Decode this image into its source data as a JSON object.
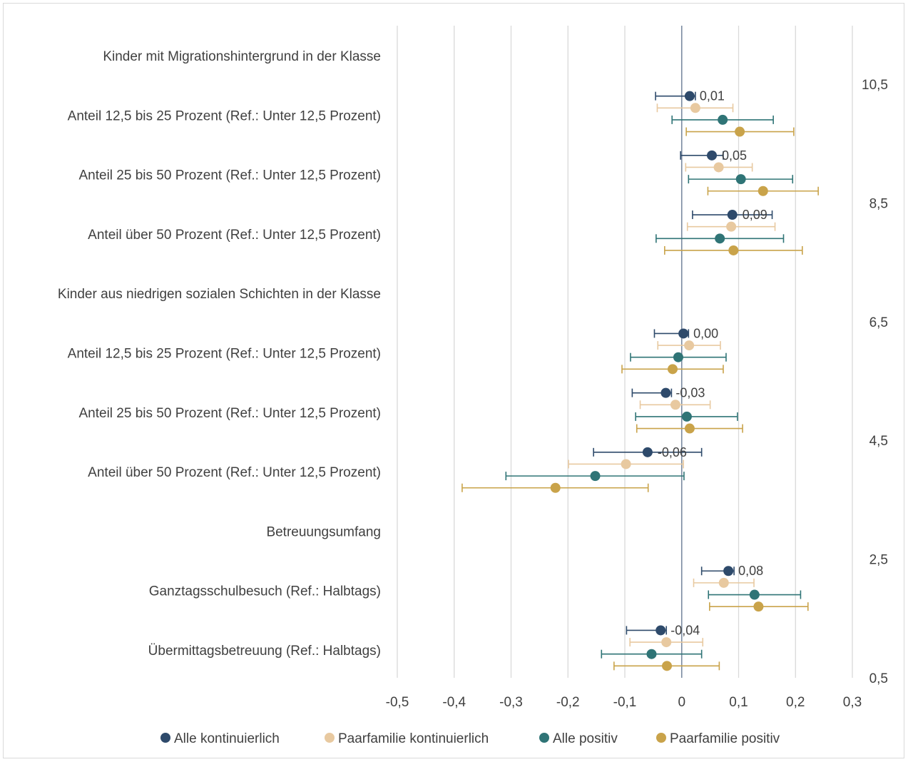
{
  "chart_data": {
    "type": "scatter",
    "title": "",
    "xlabel": "",
    "ylabel": "",
    "xlim": [
      -0.5,
      0.3
    ],
    "x_ticks": [
      "-0,5",
      "-0,4",
      "-0,3",
      "-0,2",
      "-0,1",
      "0",
      "0,1",
      "0,2",
      "0,3"
    ],
    "y2lim": [
      0.5,
      10.5
    ],
    "y2_ticks": [
      "0,5",
      "2,5",
      "4,5",
      "6,5",
      "8,5",
      "10,5"
    ],
    "grid": "vertical",
    "legend_position": "bottom",
    "categories": [
      "Kinder mit Migrationshintergrund in der Klasse",
      "Anteil 12,5 bis 25 Prozent (Ref.: Unter 12,5 Prozent)",
      "Anteil 25 bis 50 Prozent (Ref.: Unter 12,5 Prozent)",
      "Anteil über 50 Prozent (Ref.: Unter 12,5 Prozent)",
      "Kinder aus niedrigen sozialen Schichten in der Klasse",
      "Anteil 12,5 bis 25 Prozent (Ref.: Unter 12,5 Prozent)",
      "Anteil 25 bis 50 Prozent (Ref.: Unter 12,5 Prozent)",
      "Anteil über 50 Prozent (Ref.: Unter 12,5 Prozent)",
      "Betreuungsumfang",
      "Ganztagsschulbesuch (Ref.: Halbtags)",
      "Übermittagsbetreuung (Ref.: Halbtags)"
    ],
    "data_labels": [
      "0,01",
      "0,05",
      "0,09",
      "0,00",
      "-0,03",
      "-0,06",
      "0,08",
      "-0,04"
    ],
    "series": [
      {
        "name": "Alle kontinuierlich",
        "color": "#2e4a6b",
        "points": [
          {
            "y": 10.3,
            "x": 0.014,
            "lo": -0.046,
            "hi": 0.024
          },
          {
            "y": 9.3,
            "x": 0.053,
            "lo": -0.002,
            "hi": 0.073
          },
          {
            "y": 8.3,
            "x": 0.089,
            "lo": 0.019,
            "hi": 0.159
          },
          {
            "y": 6.3,
            "x": 0.003,
            "lo": -0.048,
            "hi": 0.012
          },
          {
            "y": 5.3,
            "x": -0.028,
            "lo": -0.087,
            "hi": -0.018
          },
          {
            "y": 4.3,
            "x": -0.06,
            "lo": -0.155,
            "hi": 0.035
          },
          {
            "y": 2.3,
            "x": 0.082,
            "lo": 0.035,
            "hi": 0.092
          },
          {
            "y": 1.3,
            "x": -0.037,
            "lo": -0.097,
            "hi": -0.027
          }
        ]
      },
      {
        "name": "Paarfamilie kontinuierlich",
        "color": "#e8c9a0",
        "points": [
          {
            "y": 10.1,
            "x": 0.024,
            "lo": -0.043,
            "hi": 0.09
          },
          {
            "y": 9.1,
            "x": 0.065,
            "lo": 0.007,
            "hi": 0.124
          },
          {
            "y": 8.1,
            "x": 0.087,
            "lo": 0.01,
            "hi": 0.164
          },
          {
            "y": 6.1,
            "x": 0.013,
            "lo": -0.042,
            "hi": 0.068
          },
          {
            "y": 5.1,
            "x": -0.011,
            "lo": -0.073,
            "hi": 0.05
          },
          {
            "y": 4.1,
            "x": -0.098,
            "lo": -0.199,
            "hi": 0.003
          },
          {
            "y": 2.1,
            "x": 0.074,
            "lo": 0.021,
            "hi": 0.127
          },
          {
            "y": 1.1,
            "x": -0.027,
            "lo": -0.091,
            "hi": 0.037
          }
        ]
      },
      {
        "name": "Alle positiv",
        "color": "#2f7476",
        "points": [
          {
            "y": 9.9,
            "x": 0.072,
            "lo": -0.017,
            "hi": 0.161
          },
          {
            "y": 8.9,
            "x": 0.104,
            "lo": 0.012,
            "hi": 0.195
          },
          {
            "y": 7.9,
            "x": 0.067,
            "lo": -0.045,
            "hi": 0.179
          },
          {
            "y": 5.9,
            "x": -0.006,
            "lo": -0.09,
            "hi": 0.078
          },
          {
            "y": 4.9,
            "x": 0.009,
            "lo": -0.081,
            "hi": 0.098
          },
          {
            "y": 3.9,
            "x": -0.152,
            "lo": -0.309,
            "hi": 0.004
          },
          {
            "y": 1.9,
            "x": 0.128,
            "lo": 0.047,
            "hi": 0.209
          },
          {
            "y": 0.9,
            "x": -0.053,
            "lo": -0.141,
            "hi": 0.035
          }
        ]
      },
      {
        "name": "Paarfamilie positiv",
        "color": "#c9a34a",
        "points": [
          {
            "y": 9.7,
            "x": 0.102,
            "lo": 0.008,
            "hi": 0.197
          },
          {
            "y": 8.7,
            "x": 0.143,
            "lo": 0.046,
            "hi": 0.24
          },
          {
            "y": 7.7,
            "x": 0.091,
            "lo": -0.03,
            "hi": 0.212
          },
          {
            "y": 5.7,
            "x": -0.016,
            "lo": -0.105,
            "hi": 0.073
          },
          {
            "y": 4.7,
            "x": 0.014,
            "lo": -0.079,
            "hi": 0.107
          },
          {
            "y": 3.7,
            "x": -0.222,
            "lo": -0.386,
            "hi": -0.059
          },
          {
            "y": 1.7,
            "x": 0.135,
            "lo": 0.049,
            "hi": 0.222
          },
          {
            "y": 0.7,
            "x": -0.026,
            "lo": -0.119,
            "hi": 0.066
          }
        ]
      }
    ]
  }
}
